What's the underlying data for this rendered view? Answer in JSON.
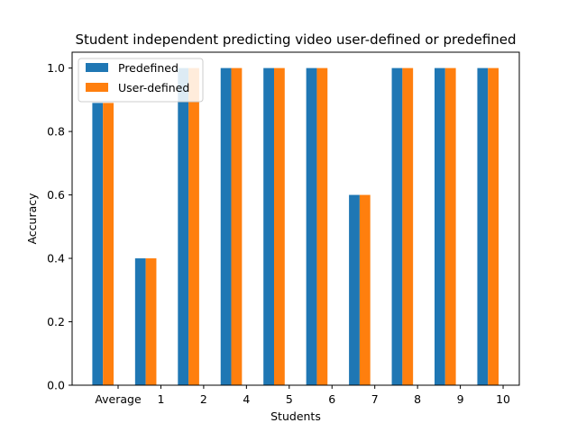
{
  "chart_data": {
    "type": "bar",
    "title": "Student independent predicting video user-defined or predefined",
    "xlabel": "Students",
    "ylabel": "Accuracy",
    "categories": [
      "Average",
      "1",
      "2",
      "4",
      "5",
      "6",
      "7",
      "8",
      "9",
      "10"
    ],
    "series": [
      {
        "name": "Predefined",
        "color": "#1f77b4",
        "values": [
          0.89,
          0.4,
          1.0,
          1.0,
          1.0,
          1.0,
          0.6,
          1.0,
          1.0,
          1.0
        ]
      },
      {
        "name": "User-defined",
        "color": "#ff7f0e",
        "values": [
          0.89,
          0.4,
          1.0,
          1.0,
          1.0,
          1.0,
          0.6,
          1.0,
          1.0,
          1.0
        ]
      }
    ],
    "ylim": [
      0,
      1.05
    ],
    "yticks": [
      "0.0",
      "0.2",
      "0.4",
      "0.6",
      "0.8",
      "1.0"
    ],
    "grid": false,
    "legend_position": "top-left"
  }
}
